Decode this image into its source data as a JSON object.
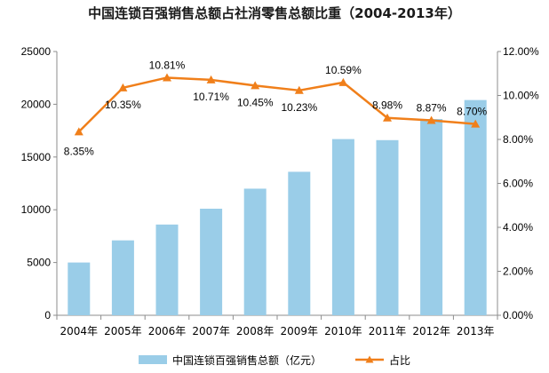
{
  "chart_data": {
    "type": "bar+line",
    "title": "中国连锁百强销售总额占社消零售总额比重（2004-2013年）",
    "categories": [
      "2004年",
      "2005年",
      "2006年",
      "2007年",
      "2008年",
      "2009年",
      "2010年",
      "2011年",
      "2012年",
      "2013年"
    ],
    "series": [
      {
        "name": "中国连锁百强销售总额（亿元）",
        "type": "bar",
        "axis": "left",
        "color": "#9ACDE8",
        "values": [
          5000,
          7100,
          8600,
          10100,
          12000,
          13600,
          16700,
          16600,
          18600,
          20400
        ]
      },
      {
        "name": "占比",
        "type": "line",
        "axis": "right",
        "color": "#F07F1A",
        "values": [
          8.35,
          10.35,
          10.81,
          10.71,
          10.45,
          10.23,
          10.59,
          8.98,
          8.87,
          8.7
        ],
        "labels": [
          "8.35%",
          "10.35%",
          "10.81%",
          "10.71%",
          "10.45%",
          "10.23%",
          "10.59%",
          "8.98%",
          "8.87%",
          "8.70%"
        ]
      }
    ],
    "y_left": {
      "ylim": [
        0,
        25000
      ],
      "ticks": [
        "0",
        "5000",
        "10000",
        "15000",
        "20000",
        "25000"
      ]
    },
    "y_right": {
      "ylim": [
        0,
        12
      ],
      "ticks": [
        "0.00%",
        "2.00%",
        "4.00%",
        "6.00%",
        "8.00%",
        "10.00%",
        "12.00%"
      ]
    },
    "legend": {
      "position": "bottom",
      "bar_label": "中国连锁百强销售总额（亿元）",
      "line_label": "占比"
    },
    "grid": false
  }
}
